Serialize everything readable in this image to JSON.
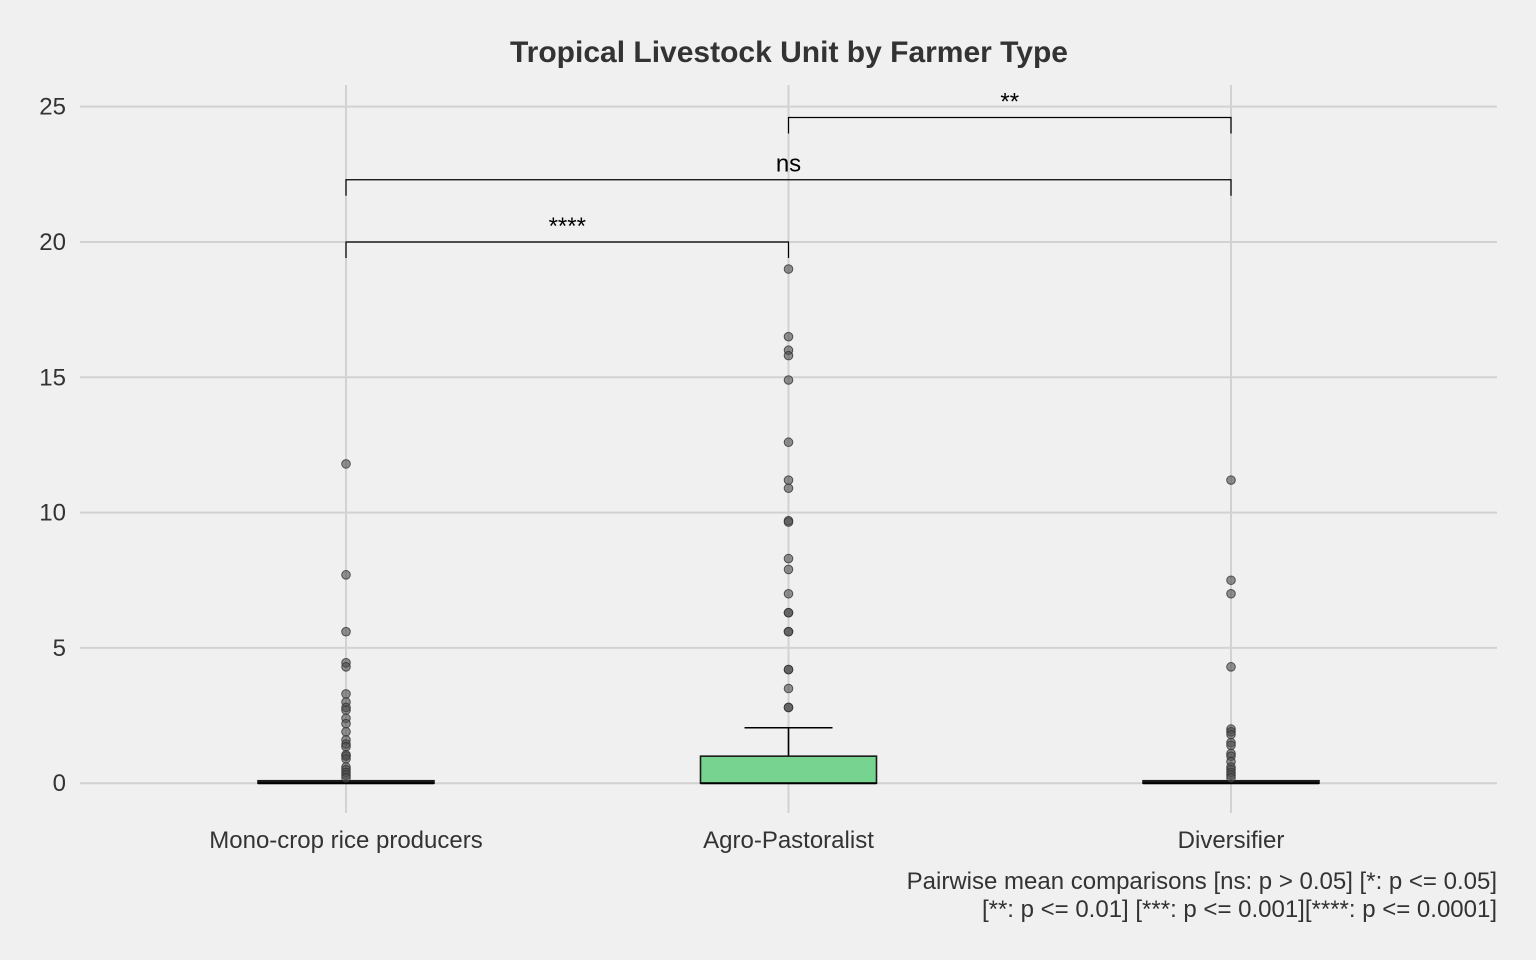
{
  "chart_data": {
    "type": "box",
    "title": "Tropical Livestock Unit by Farmer Type",
    "xlabel": "",
    "ylabel": "",
    "ylim": [
      -1.1,
      25.8
    ],
    "yticks": [
      0,
      5,
      10,
      15,
      20,
      25
    ],
    "grid": true,
    "legend": "none",
    "categories": [
      "Mono-crop rice producers",
      "Agro-Pastoralist",
      "Diversifier"
    ],
    "boxes": [
      {
        "category": "Mono-crop rice producers",
        "q1": 0,
        "median": 0,
        "q3": 0.05,
        "whisker_low": 0,
        "whisker_high": 0.05,
        "fill": "#1a1a1a",
        "outliers": [
          11.8,
          7.7,
          5.6,
          4.45,
          4.3,
          3.3,
          3.0,
          2.8,
          2.7,
          2.4,
          2.2,
          1.9,
          1.6,
          1.45,
          1.35,
          1.05,
          1.0,
          0.9,
          0.6,
          0.5,
          0.4,
          0.3,
          0.2
        ]
      },
      {
        "category": "Agro-Pastoralist",
        "q1": 0,
        "median": 0,
        "q3": 1.0,
        "whisker_low": 0,
        "whisker_high": 2.05,
        "fill": "#77d490",
        "outliers": [
          19.0,
          16.5,
          16.0,
          15.8,
          14.9,
          12.6,
          11.2,
          10.9,
          9.7,
          9.65,
          8.3,
          7.9,
          7.0,
          6.3,
          6.3,
          5.6,
          5.6,
          4.2,
          4.2,
          3.5,
          2.8,
          2.8
        ]
      },
      {
        "category": "Diversifier",
        "q1": 0,
        "median": 0,
        "q3": 0.05,
        "whisker_low": 0,
        "whisker_high": 0.05,
        "fill": "#1a1a1a",
        "outliers": [
          11.2,
          7.5,
          7.0,
          4.3,
          2.0,
          1.9,
          1.8,
          1.5,
          1.4,
          1.1,
          1.0,
          0.8,
          0.6,
          0.5,
          0.4,
          0.3,
          0.2
        ]
      }
    ],
    "comparisons": [
      {
        "group1": "Mono-crop rice producers",
        "group2": "Agro-Pastoralist",
        "y": 20.0,
        "label": "****"
      },
      {
        "group1": "Mono-crop rice producers",
        "group2": "Diversifier",
        "y": 22.3,
        "label": "ns"
      },
      {
        "group1": "Agro-Pastoralist",
        "group2": "Diversifier",
        "y": 24.6,
        "label": "**"
      }
    ],
    "caption": [
      "Pairwise mean comparisons [ns: p > 0.05] [*: p <= 0.05]",
      "[**: p <= 0.01] [***: p <= 0.001][****: p <= 0.0001]"
    ]
  }
}
